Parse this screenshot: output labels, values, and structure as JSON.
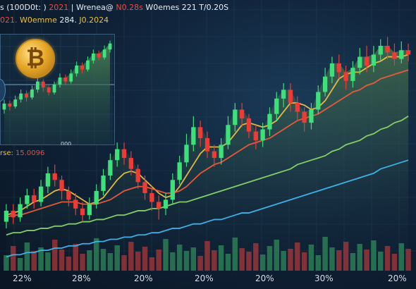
{
  "header": {
    "line1": {
      "part1": "s (100D0t: )",
      "part2": "2021",
      "part3": "| Wrenea@",
      "part4": "N0.28s",
      "part5": "W0emes 221",
      "part6": "T/0.20S"
    },
    "line2": {
      "part1": "021.",
      "part2": "W0emme",
      "part3": "284.",
      "part4": "J0.2024"
    }
  },
  "inset": {
    "coin_symbol": "₿",
    "date_label": "000",
    "price_label": "rse: ",
    "price_value": "15.0096"
  },
  "chart_data": {
    "type": "candlestick",
    "title": "",
    "x_tick_labels": [
      "22%",
      "28%",
      "20%",
      "20%",
      "20%",
      "30%",
      "20%"
    ],
    "y_range": [
      0,
      100
    ],
    "candles": [
      {
        "o": 12,
        "c": 17,
        "h": 20,
        "l": 9
      },
      {
        "o": 17,
        "c": 14,
        "h": 20,
        "l": 11
      },
      {
        "o": 14,
        "c": 20,
        "h": 23,
        "l": 12
      },
      {
        "o": 20,
        "c": 24,
        "h": 27,
        "l": 18
      },
      {
        "o": 24,
        "c": 21,
        "h": 27,
        "l": 18
      },
      {
        "o": 21,
        "c": 28,
        "h": 31,
        "l": 19
      },
      {
        "o": 28,
        "c": 34,
        "h": 37,
        "l": 25
      },
      {
        "o": 34,
        "c": 31,
        "h": 38,
        "l": 28
      },
      {
        "o": 31,
        "c": 26,
        "h": 33,
        "l": 22
      },
      {
        "o": 26,
        "c": 22,
        "h": 28,
        "l": 19
      },
      {
        "o": 22,
        "c": 18,
        "h": 25,
        "l": 15
      },
      {
        "o": 18,
        "c": 15,
        "h": 21,
        "l": 12
      },
      {
        "o": 15,
        "c": 20,
        "h": 23,
        "l": 13
      },
      {
        "o": 20,
        "c": 26,
        "h": 29,
        "l": 18
      },
      {
        "o": 26,
        "c": 33,
        "h": 36,
        "l": 24
      },
      {
        "o": 33,
        "c": 40,
        "h": 43,
        "l": 31
      },
      {
        "o": 40,
        "c": 45,
        "h": 48,
        "l": 37
      },
      {
        "o": 45,
        "c": 41,
        "h": 48,
        "l": 38
      },
      {
        "o": 41,
        "c": 36,
        "h": 44,
        "l": 33
      },
      {
        "o": 36,
        "c": 30,
        "h": 38,
        "l": 27
      },
      {
        "o": 30,
        "c": 25,
        "h": 33,
        "l": 22
      },
      {
        "o": 25,
        "c": 21,
        "h": 28,
        "l": 17
      },
      {
        "o": 21,
        "c": 18,
        "h": 24,
        "l": 13
      },
      {
        "o": 18,
        "c": 22,
        "h": 25,
        "l": 15
      },
      {
        "o": 22,
        "c": 31,
        "h": 34,
        "l": 20
      },
      {
        "o": 31,
        "c": 39,
        "h": 42,
        "l": 29
      },
      {
        "o": 39,
        "c": 47,
        "h": 52,
        "l": 37
      },
      {
        "o": 47,
        "c": 55,
        "h": 60,
        "l": 44
      },
      {
        "o": 55,
        "c": 50,
        "h": 58,
        "l": 46
      },
      {
        "o": 50,
        "c": 44,
        "h": 53,
        "l": 41
      },
      {
        "o": 44,
        "c": 41,
        "h": 47,
        "l": 37
      },
      {
        "o": 41,
        "c": 47,
        "h": 50,
        "l": 38
      },
      {
        "o": 47,
        "c": 56,
        "h": 60,
        "l": 45
      },
      {
        "o": 56,
        "c": 63,
        "h": 66,
        "l": 53
      },
      {
        "o": 63,
        "c": 59,
        "h": 66,
        "l": 55
      },
      {
        "o": 59,
        "c": 53,
        "h": 61,
        "l": 50
      },
      {
        "o": 53,
        "c": 49,
        "h": 56,
        "l": 45
      },
      {
        "o": 49,
        "c": 54,
        "h": 57,
        "l": 46
      },
      {
        "o": 54,
        "c": 61,
        "h": 64,
        "l": 51
      },
      {
        "o": 61,
        "c": 68,
        "h": 71,
        "l": 58
      },
      {
        "o": 68,
        "c": 72,
        "h": 75,
        "l": 64
      },
      {
        "o": 72,
        "c": 66,
        "h": 75,
        "l": 62
      },
      {
        "o": 66,
        "c": 62,
        "h": 69,
        "l": 58
      },
      {
        "o": 62,
        "c": 57,
        "h": 64,
        "l": 53
      },
      {
        "o": 57,
        "c": 63,
        "h": 66,
        "l": 54
      },
      {
        "o": 63,
        "c": 71,
        "h": 74,
        "l": 61
      },
      {
        "o": 71,
        "c": 78,
        "h": 82,
        "l": 69
      },
      {
        "o": 78,
        "c": 84,
        "h": 87,
        "l": 75
      },
      {
        "o": 84,
        "c": 80,
        "h": 88,
        "l": 77
      },
      {
        "o": 80,
        "c": 76,
        "h": 83,
        "l": 72
      },
      {
        "o": 76,
        "c": 82,
        "h": 85,
        "l": 73
      },
      {
        "o": 82,
        "c": 87,
        "h": 91,
        "l": 79
      },
      {
        "o": 87,
        "c": 83,
        "h": 92,
        "l": 80
      },
      {
        "o": 83,
        "c": 88,
        "h": 92,
        "l": 80
      },
      {
        "o": 88,
        "c": 92,
        "h": 95,
        "l": 85
      },
      {
        "o": 92,
        "c": 89,
        "h": 96,
        "l": 86
      },
      {
        "o": 89,
        "c": 86,
        "h": 93,
        "l": 83
      },
      {
        "o": 86,
        "c": 90,
        "h": 94,
        "l": 84
      },
      {
        "o": 90,
        "c": 88,
        "h": 93,
        "l": 85
      }
    ],
    "volumes": [
      22,
      35,
      18,
      40,
      28,
      33,
      26,
      44,
      30,
      20,
      38,
      24,
      29,
      46,
      31,
      25,
      36,
      22,
      41,
      27,
      34,
      19,
      30,
      45,
      26,
      37,
      28,
      33,
      21,
      42,
      29,
      36,
      24,
      47,
      32,
      27,
      39,
      23,
      35,
      44,
      28,
      31,
      40,
      26,
      37,
      22,
      48,
      33,
      29,
      41,
      25,
      38,
      30,
      43,
      27,
      35,
      24,
      39,
      31
    ],
    "moving_averages": [
      {
        "color": "#e9c046",
        "values": [
          15,
          16,
          17,
          19,
          21,
          22,
          24,
          26,
          27,
          26,
          24,
          22,
          20,
          21,
          23,
          27,
          31,
          34,
          35,
          34,
          31,
          28,
          25,
          23,
          24,
          28,
          33,
          38,
          43,
          46,
          46,
          46,
          48,
          52,
          56,
          57,
          56,
          55,
          56,
          58,
          62,
          66,
          66,
          65,
          63,
          64,
          67,
          72,
          77,
          79,
          80,
          80,
          82,
          84,
          85,
          87,
          87,
          87,
          88
        ]
      },
      {
        "color": "#ef5b3c",
        "values": [
          14,
          15,
          15,
          16,
          17,
          18,
          19,
          20,
          21,
          21,
          21,
          20,
          20,
          20,
          21,
          22,
          24,
          26,
          27,
          28,
          28,
          27,
          26,
          25,
          25,
          26,
          28,
          31,
          34,
          36,
          38,
          39,
          41,
          43,
          45,
          47,
          48,
          49,
          50,
          52,
          54,
          56,
          58,
          59,
          60,
          61,
          63,
          65,
          67,
          69,
          71,
          72,
          74,
          75,
          77,
          78,
          79,
          80,
          81
        ]
      },
      {
        "color": "#8bd56a",
        "values": [
          6,
          7,
          7,
          8,
          8,
          9,
          9,
          10,
          10,
          11,
          11,
          12,
          12,
          13,
          13,
          14,
          15,
          15,
          16,
          17,
          17,
          18,
          18,
          19,
          20,
          21,
          21,
          22,
          23,
          24,
          25,
          26,
          27,
          28,
          29,
          30,
          31,
          32,
          33,
          34,
          35,
          36,
          38,
          39,
          40,
          41,
          42,
          44,
          45,
          47,
          48,
          49,
          51,
          52,
          54,
          55,
          57,
          58,
          60
        ]
      },
      {
        "color": "#3fb8f0",
        "values": [
          -4,
          -3,
          -3,
          -2,
          -2,
          -1,
          -1,
          0,
          0,
          1,
          1,
          2,
          2,
          3,
          3,
          4,
          4,
          5,
          5,
          6,
          6,
          7,
          7,
          8,
          9,
          9,
          10,
          11,
          11,
          12,
          13,
          13,
          14,
          15,
          16,
          16,
          17,
          18,
          19,
          20,
          21,
          22,
          23,
          24,
          25,
          26,
          27,
          28,
          29,
          30,
          31,
          32,
          33,
          34,
          36,
          37,
          38,
          39,
          40
        ]
      }
    ],
    "inset": {
      "candles": [
        {
          "o": 30,
          "c": 36,
          "h": 40,
          "l": 26
        },
        {
          "o": 36,
          "c": 33,
          "h": 39,
          "l": 29
        },
        {
          "o": 33,
          "c": 40,
          "h": 44,
          "l": 31
        },
        {
          "o": 40,
          "c": 46,
          "h": 50,
          "l": 37
        },
        {
          "o": 46,
          "c": 42,
          "h": 49,
          "l": 38
        },
        {
          "o": 42,
          "c": 50,
          "h": 54,
          "l": 40
        },
        {
          "o": 50,
          "c": 58,
          "h": 62,
          "l": 47
        },
        {
          "o": 58,
          "c": 52,
          "h": 60,
          "l": 48
        },
        {
          "o": 52,
          "c": 47,
          "h": 55,
          "l": 44
        },
        {
          "o": 47,
          "c": 55,
          "h": 58,
          "l": 45
        },
        {
          "o": 55,
          "c": 62,
          "h": 66,
          "l": 52
        },
        {
          "o": 62,
          "c": 58,
          "h": 65,
          "l": 55
        },
        {
          "o": 58,
          "c": 66,
          "h": 70,
          "l": 56
        },
        {
          "o": 66,
          "c": 74,
          "h": 78,
          "l": 63
        },
        {
          "o": 74,
          "c": 70,
          "h": 77,
          "l": 66
        },
        {
          "o": 70,
          "c": 79,
          "h": 83,
          "l": 68
        },
        {
          "o": 79,
          "c": 86,
          "h": 90,
          "l": 76
        },
        {
          "o": 86,
          "c": 82,
          "h": 89,
          "l": 79
        },
        {
          "o": 82,
          "c": 90,
          "h": 94,
          "l": 80
        },
        {
          "o": 90,
          "c": 96,
          "h": 99,
          "l": 87
        }
      ]
    }
  }
}
